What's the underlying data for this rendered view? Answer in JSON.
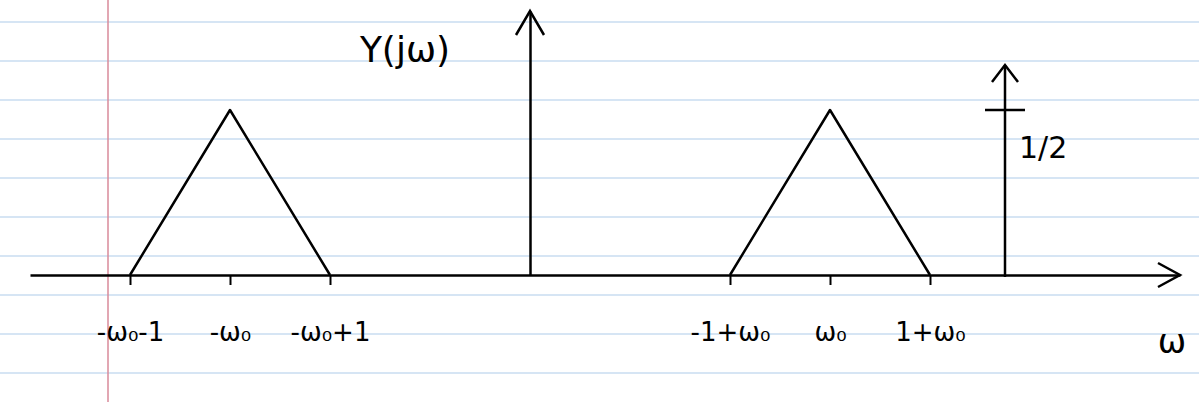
{
  "chart_data": {
    "type": "line",
    "y_label": "Y(jω)",
    "x_label": "ω",
    "xlim": [
      -5,
      6.5
    ],
    "ylim": [
      0,
      0.8
    ],
    "xticks": [
      {
        "value": -4,
        "label": "-ω₀-1"
      },
      {
        "value": -3,
        "label": "-ω₀"
      },
      {
        "value": -2,
        "label": "-ω₀+1"
      },
      {
        "value": 2,
        "label": "-1+ω₀"
      },
      {
        "value": 3,
        "label": "ω₀"
      },
      {
        "value": 4,
        "label": "1+ω₀"
      }
    ],
    "yticks": [],
    "tick_labels": "x",
    "color": "#000000",
    "data_labels": true,
    "series": [
      {
        "x": [
          -4,
          -3,
          -2
        ],
        "values": [
          0,
          0.5,
          0
        ]
      },
      {
        "x": [
          2,
          3,
          4
        ],
        "values": [
          0,
          0.5,
          0
        ]
      },
      {
        "type": "impulse",
        "x": [
          4.75
        ],
        "values": [
          0.5
        ],
        "value_labels": [
          "1/2"
        ]
      }
    ]
  }
}
